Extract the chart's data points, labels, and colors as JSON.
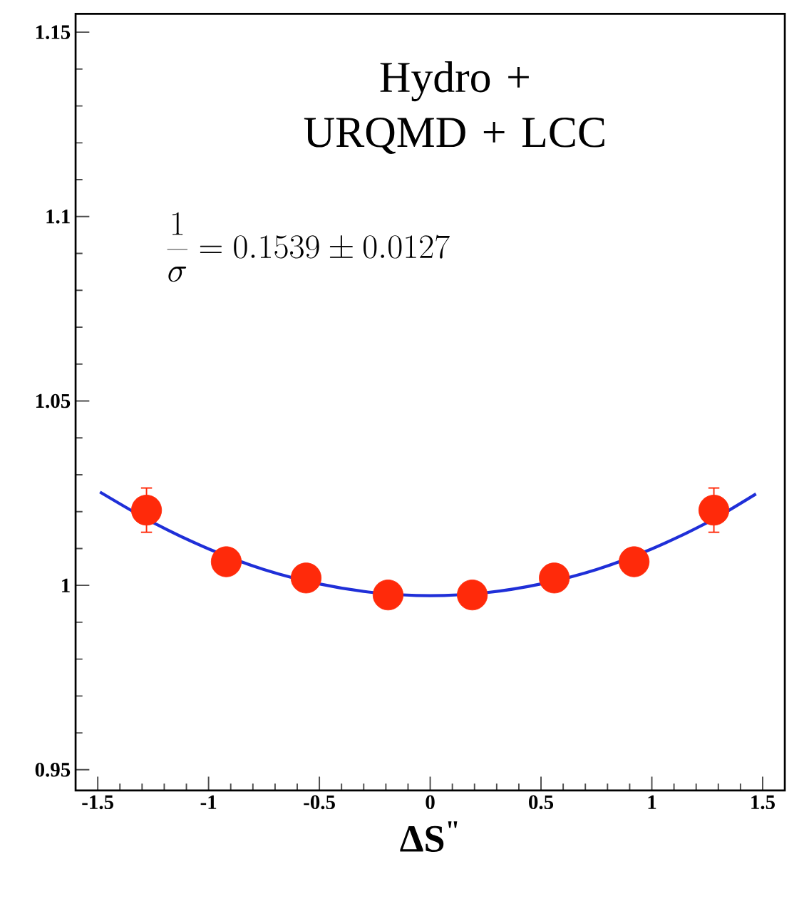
{
  "chart_data": {
    "type": "scatter",
    "xlabel": "ΔS$^{\"}$",
    "annotations": [
      "Hydro + URQMD + LCC",
      "\\frac{1}{\\sigma} = 0.1539 \\pm 0.0127"
    ],
    "xlim": [
      -1.6,
      1.6
    ],
    "ylim": [
      0.9444,
      1.155
    ],
    "marker": "circle",
    "xticks": [
      -1.5,
      -1,
      -0.5,
      0,
      0.5,
      1,
      1.5
    ],
    "yticks": [
      0.95,
      1,
      1.05,
      1.1,
      1.15
    ],
    "series": [
      {
        "type": "scatter",
        "color": "#ff2a0a",
        "x": [
          -1.28,
          -0.92,
          -0.56,
          -0.19,
          0.19,
          0.56,
          0.92,
          1.28
        ],
        "values": [
          1.0204,
          1.0064,
          1.002,
          0.9974,
          0.9974,
          1.002,
          1.0064,
          1.0204
        ],
        "errors": [
          0.006,
          null,
          null,
          null,
          null,
          null,
          null,
          0.006
        ]
      },
      {
        "type": "line",
        "marker": "none",
        "color": "#1f2fd8",
        "x": [
          -1.49,
          -1.25,
          -1,
          -0.75,
          -0.5,
          -0.25,
          0,
          0.25,
          0.5,
          0.75,
          1,
          1.25,
          1.47
        ],
        "values": [
          1.0253,
          1.017,
          1.0099,
          1.0043,
          1.0004,
          0.998,
          0.9972,
          0.998,
          1.0004,
          1.0043,
          1.0099,
          1.017,
          1.0248
        ]
      }
    ]
  }
}
